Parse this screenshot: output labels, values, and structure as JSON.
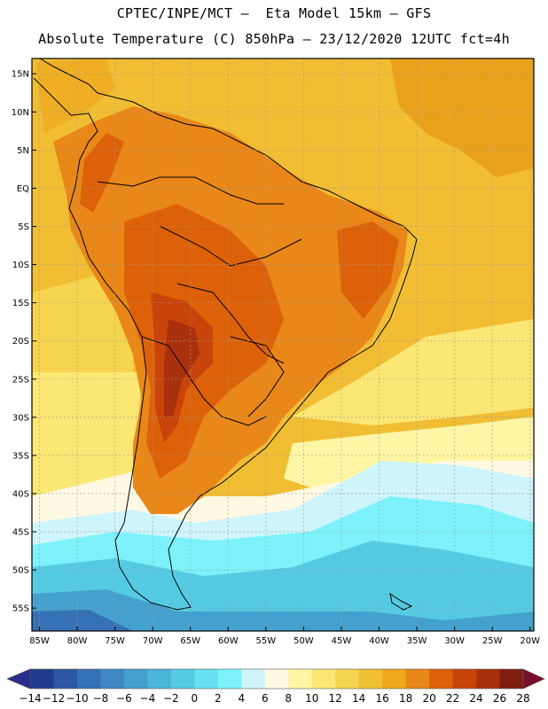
{
  "header": {
    "line1": "CPTEC/INPE/MCT –  Eta Model 15km – GFS",
    "line2": "Absolute Temperature (C) 850hPa – 23/12/2020 12UTC fct=4h"
  },
  "map": {
    "lon_range": [
      -86,
      -19.5
    ],
    "lat_range": [
      -58,
      17
    ],
    "lat_ticks": [
      {
        "value": 15,
        "label": "15N"
      },
      {
        "value": 10,
        "label": "10N"
      },
      {
        "value": 5,
        "label": "5N"
      },
      {
        "value": 0,
        "label": "EQ"
      },
      {
        "value": -5,
        "label": "5S"
      },
      {
        "value": -10,
        "label": "10S"
      },
      {
        "value": -15,
        "label": "15S"
      },
      {
        "value": -20,
        "label": "20S"
      },
      {
        "value": -25,
        "label": "25S"
      },
      {
        "value": -30,
        "label": "30S"
      },
      {
        "value": -35,
        "label": "35S"
      },
      {
        "value": -40,
        "label": "40S"
      },
      {
        "value": -45,
        "label": "45S"
      },
      {
        "value": -50,
        "label": "50S"
      },
      {
        "value": -55,
        "label": "55S"
      }
    ],
    "lon_ticks": [
      {
        "value": -85,
        "label": "85W"
      },
      {
        "value": -80,
        "label": "80W"
      },
      {
        "value": -75,
        "label": "75W"
      },
      {
        "value": -70,
        "label": "70W"
      },
      {
        "value": -65,
        "label": "65W"
      },
      {
        "value": -60,
        "label": "60W"
      },
      {
        "value": -55,
        "label": "55W"
      },
      {
        "value": -50,
        "label": "50W"
      },
      {
        "value": -45,
        "label": "45W"
      },
      {
        "value": -40,
        "label": "40W"
      },
      {
        "value": -35,
        "label": "35W"
      },
      {
        "value": -30,
        "label": "30W"
      },
      {
        "value": -25,
        "label": "25W"
      },
      {
        "value": -20,
        "label": "20W"
      }
    ]
  },
  "colorbar": {
    "labels": [
      "-14",
      "-12",
      "-10",
      "-8",
      "-6",
      "-4",
      "-2",
      "0",
      "2",
      "4",
      "6",
      "8",
      "10",
      "12",
      "14",
      "16",
      "18",
      "20",
      "22",
      "24",
      "26",
      "28"
    ],
    "colors": [
      "#1f3d8a",
      "#2b57a3",
      "#3671b5",
      "#3f88c2",
      "#44a0cc",
      "#49b6d6",
      "#55cbe3",
      "#66dff0",
      "#7df2fa",
      "#cdf5fb",
      "#fff9e3",
      "#fef6a4",
      "#fbe774",
      "#f6d44f",
      "#f1bf34",
      "#f0a81a",
      "#e98718",
      "#dd6108",
      "#c8440a",
      "#a9300c",
      "#7f1d10"
    ],
    "under_color": "#2a2c8e",
    "over_color": "#7a0f2a"
  }
}
